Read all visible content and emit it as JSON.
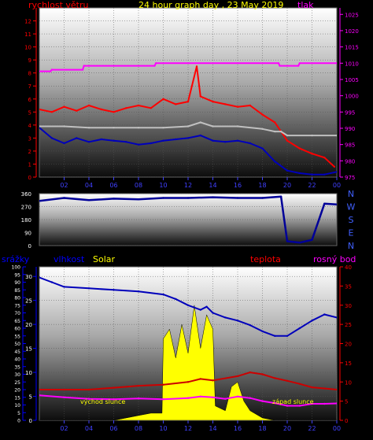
{
  "colors": {
    "red": "#ff0000",
    "blue": "#0000bb",
    "magenta": "#ff00ff",
    "yellow": "#ffff00",
    "silver": "#c0c0c0",
    "navy": "#000099",
    "darkred": "#cc0000",
    "bg": "#000000"
  },
  "chart_data": [
    {
      "type": "line",
      "title": "24 hour graph day , 23 May 2019",
      "left_axis_title": "rychlost větru",
      "right_axis_title": "tlak",
      "x_ticks": [
        "02",
        "04",
        "06",
        "08",
        "10",
        "12",
        "14",
        "16",
        "18",
        "20",
        "22",
        "00"
      ],
      "y_left_ticks": [
        "0",
        "1",
        "2",
        "3",
        "4",
        "5",
        "6",
        "7",
        "8",
        "9",
        "10",
        "11",
        "12"
      ],
      "y_right_ticks": [
        "975",
        "980",
        "985",
        "990",
        "995",
        "1000",
        "1005",
        "1010",
        "1015",
        "1020",
        "1025"
      ],
      "xlim": [
        0,
        24
      ],
      "ylim_left": [
        0,
        13
      ],
      "ylim_right": [
        975,
        1027
      ],
      "series": [
        {
          "role": "gust",
          "color": "red",
          "axis": "left",
          "x": [
            0,
            1,
            2,
            3,
            4,
            5,
            6,
            7,
            8,
            9,
            10,
            11,
            12,
            12.7,
            13,
            14,
            15,
            16,
            17,
            18,
            19,
            20,
            21,
            22,
            23,
            23.8
          ],
          "y": [
            5.2,
            5.0,
            5.4,
            5.1,
            5.5,
            5.2,
            5.0,
            5.3,
            5.5,
            5.3,
            6.0,
            5.6,
            5.8,
            8.5,
            6.2,
            5.8,
            5.6,
            5.4,
            5.5,
            4.8,
            4.2,
            2.8,
            2.2,
            1.8,
            1.5,
            0.8
          ]
        },
        {
          "role": "avg_wind",
          "color": "blue",
          "axis": "left",
          "x": [
            0,
            1,
            2,
            3,
            4,
            5,
            6,
            7,
            8,
            9,
            10,
            11,
            12,
            13,
            14,
            15,
            16,
            17,
            18,
            19,
            20,
            21,
            22,
            23,
            24
          ],
          "y": [
            3.8,
            3.0,
            2.6,
            3.0,
            2.7,
            2.9,
            2.8,
            2.7,
            2.5,
            2.6,
            2.8,
            2.9,
            3.0,
            3.2,
            2.8,
            2.7,
            2.8,
            2.6,
            2.2,
            1.2,
            0.5,
            0.3,
            0.2,
            0.2,
            0.4
          ]
        },
        {
          "role": "wind_level",
          "color": "silver",
          "axis": "left",
          "x": [
            0,
            2,
            4,
            6,
            8,
            10,
            12,
            13,
            14,
            16,
            18,
            19,
            19.5,
            20,
            22,
            24
          ],
          "y": [
            3.9,
            3.9,
            3.8,
            3.8,
            3.8,
            3.8,
            3.9,
            4.2,
            3.9,
            3.9,
            3.7,
            3.5,
            3.5,
            3.2,
            3.2,
            3.2
          ]
        },
        {
          "role": "pressure",
          "color": "magenta",
          "axis": "right",
          "x": [
            0,
            0.9,
            1.0,
            3.5,
            3.6,
            9.3,
            9.4,
            19.3,
            19.4,
            20.9,
            21.0,
            24
          ],
          "y": [
            1007.5,
            1007.5,
            1008.0,
            1008.0,
            1009.2,
            1009.2,
            1010.0,
            1010.0,
            1009.2,
            1009.2,
            1010.0,
            1010.0
          ]
        }
      ]
    },
    {
      "type": "line",
      "y_ticks": [
        "360",
        "270",
        "180",
        "90",
        "0"
      ],
      "directions": [
        "N",
        "W",
        "S",
        "E",
        "N"
      ],
      "ylim": [
        0,
        360
      ],
      "series": [
        {
          "role": "wind_direction",
          "color": "navy",
          "x": [
            0,
            2,
            4,
            6,
            8,
            10,
            12,
            14,
            16,
            18,
            19.5,
            20,
            21,
            22,
            23,
            24
          ],
          "y": [
            310,
            330,
            315,
            325,
            320,
            330,
            330,
            335,
            330,
            330,
            340,
            30,
            20,
            40,
            290,
            285
          ]
        }
      ]
    },
    {
      "type": "line",
      "labels": {
        "rain": "srážky",
        "humidity": "vlhkost",
        "solar": "Solar",
        "temp": "teplota",
        "dew": "rosný bod"
      },
      "annotations": {
        "sunrise": "východ slunce",
        "sunset": "západ slunce"
      },
      "x_ticks": [
        "02",
        "04",
        "06",
        "08",
        "10",
        "12",
        "14",
        "16",
        "18",
        "20",
        "22",
        "00"
      ],
      "y_left_outer_ticks": [
        "0",
        "5",
        "10",
        "15",
        "20",
        "25",
        "30",
        "35",
        "40",
        "45",
        "50",
        "55",
        "60",
        "65",
        "70",
        "75",
        "80",
        "85",
        "90",
        "95",
        "100"
      ],
      "y_left_inner_ticks": [
        "0",
        "5",
        "10",
        "15",
        "20",
        "25",
        "30"
      ],
      "y_right_ticks": [
        "0",
        "5",
        "10",
        "15",
        "20",
        "25",
        "30",
        "35",
        "40"
      ],
      "xlim": [
        0,
        24
      ],
      "humidity_lim": [
        0,
        100
      ],
      "solar_lim": [
        0,
        32
      ],
      "temp_lim": [
        0,
        40
      ],
      "series": [
        {
          "role": "humidity",
          "color": "blue",
          "x": [
            0,
            1,
            2,
            4,
            6,
            8,
            10,
            11,
            12,
            13,
            13.5,
            14,
            15,
            16,
            17,
            18,
            19,
            20,
            21,
            22,
            23,
            24
          ],
          "y": [
            93,
            90,
            87,
            86,
            85,
            84,
            82,
            79,
            75,
            72,
            74,
            70,
            67,
            65,
            62,
            58,
            55,
            55,
            60,
            65,
            69,
            67
          ]
        },
        {
          "role": "solar",
          "color": "yellow",
          "x": [
            0,
            5,
            6,
            7,
            8,
            9,
            9.9,
            10,
            10.5,
            11,
            11.5,
            12,
            12.5,
            13,
            13.5,
            14,
            14.2,
            15,
            15.5,
            16,
            16.5,
            17,
            18,
            19,
            20,
            24
          ],
          "y": [
            0,
            0,
            0,
            0.5,
            1,
            1.5,
            1.5,
            17,
            19,
            13,
            20,
            14,
            24,
            15,
            22,
            19,
            3,
            2,
            7,
            8,
            4,
            2,
            0.5,
            0,
            0,
            0
          ]
        },
        {
          "role": "temperature",
          "color": "darkred",
          "x": [
            0,
            2,
            4,
            6,
            8,
            10,
            12,
            13,
            14,
            16,
            17,
            18,
            19,
            20,
            21,
            22,
            23,
            24
          ],
          "y": [
            8,
            8,
            8,
            8.5,
            9,
            9.3,
            10,
            10.8,
            10.4,
            11.5,
            12.5,
            12,
            11,
            10.3,
            9.5,
            8.6,
            8.3,
            8
          ]
        },
        {
          "role": "dew_point",
          "color": "magenta",
          "x": [
            0,
            2,
            4,
            6,
            8,
            10,
            12,
            13,
            14,
            15,
            16,
            17,
            18,
            19,
            20,
            21,
            22,
            23,
            24
          ],
          "y": [
            6.5,
            6,
            5.6,
            5.5,
            5.7,
            5.5,
            5.8,
            6.2,
            6,
            5.6,
            6.2,
            5.8,
            5,
            4.5,
            3.8,
            3.8,
            4.3,
            4.3,
            4.4
          ]
        }
      ]
    }
  ]
}
